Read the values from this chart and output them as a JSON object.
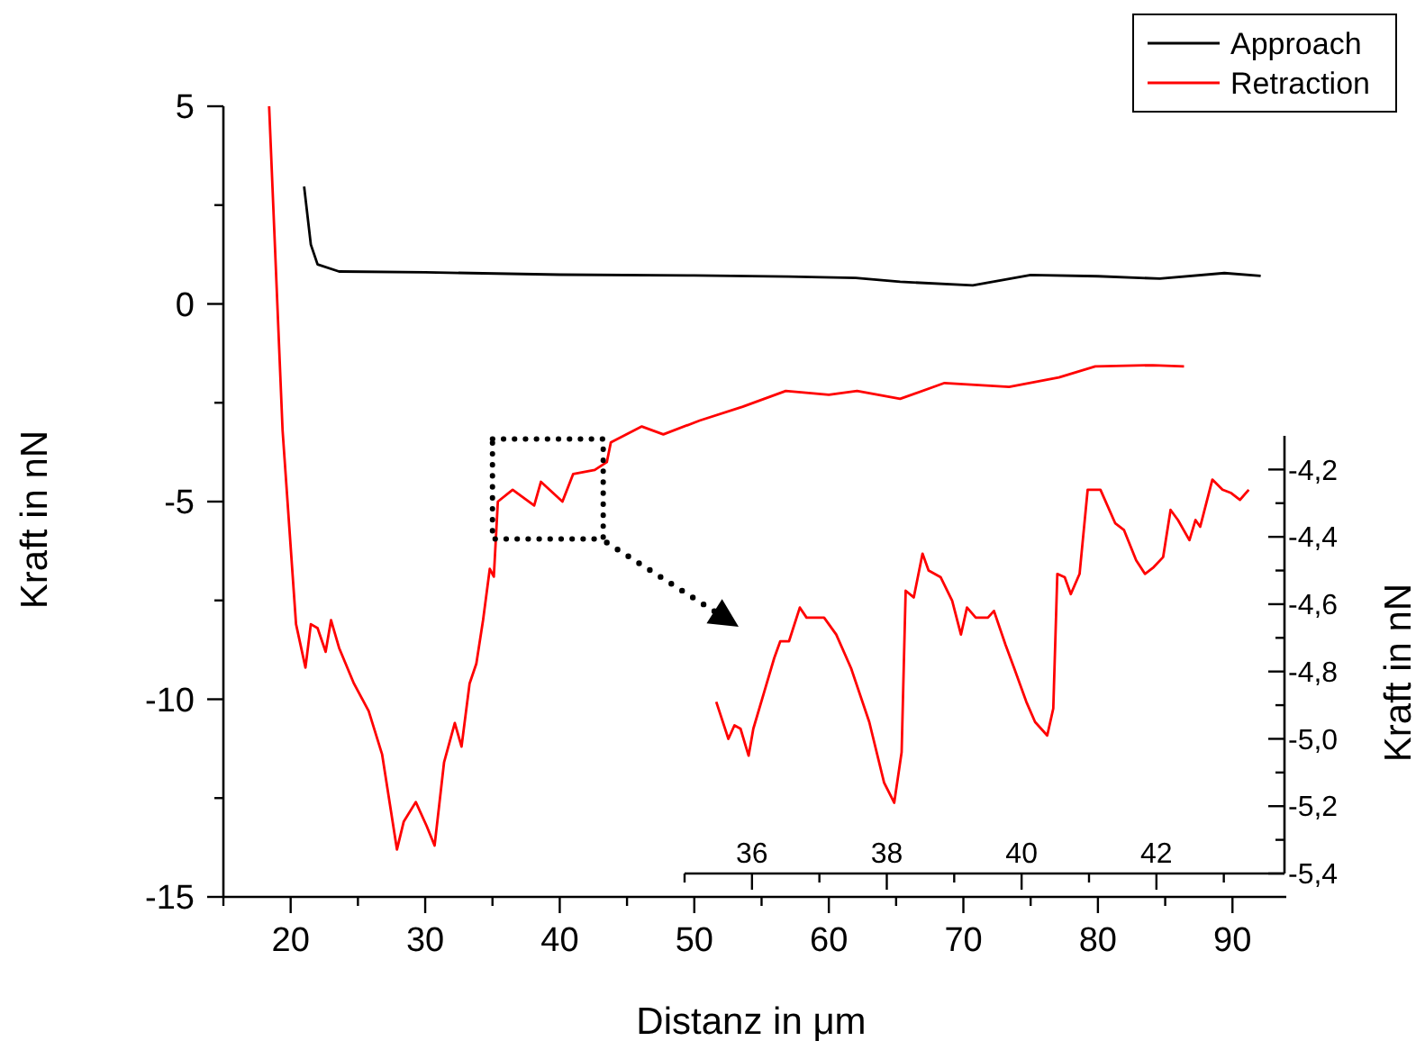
{
  "chart_data": [
    {
      "type": "line",
      "xlabel": "Distanz in μm",
      "ylabel": "Kraft in nN",
      "xlim": [
        15,
        94
      ],
      "ylim": [
        -15,
        5
      ],
      "xticks": [
        {
          "value": 15,
          "label": null
        },
        20,
        {
          "value": 25,
          "label": null
        },
        30,
        {
          "value": 35,
          "label": null
        },
        40,
        {
          "value": 45,
          "label": null
        },
        50,
        {
          "value": 55,
          "label": null
        },
        60,
        {
          "value": 65,
          "label": null
        },
        70,
        {
          "value": 75,
          "label": null
        },
        80,
        {
          "value": 85,
          "label": null
        },
        90
      ],
      "yticks": [
        -15,
        {
          "value": -12.5,
          "label": null
        },
        -10,
        {
          "value": -7.5,
          "label": null
        },
        -5,
        {
          "value": -2.5,
          "label": null
        },
        0,
        {
          "value": 2.5,
          "label": null
        },
        5
      ],
      "legend": "top right",
      "grid": false,
      "series": [
        {
          "name": "Approach",
          "color": "#000000",
          "x": [
            21,
            21.5,
            22,
            23.6,
            30,
            40,
            50,
            57,
            62,
            65.3,
            70.7,
            75,
            80,
            84.6,
            89.4,
            92.1
          ],
          "values": [
            2.97,
            1.5,
            1.0,
            0.82,
            0.8,
            0.74,
            0.72,
            0.69,
            0.66,
            0.56,
            0.47,
            0.73,
            0.7,
            0.64,
            0.78,
            0.71
          ]
        },
        {
          "name": "Retraction",
          "color": "#ff0000",
          "x": [
            18.4,
            19.4,
            20.4,
            21.1,
            21.5,
            22,
            22.6,
            23,
            23.6,
            24.7,
            25.8,
            26.8,
            27.9,
            28.4,
            29.3,
            30.1,
            30.7,
            31.4,
            32.2,
            32.7,
            33.3,
            33.8,
            34.3,
            34.8,
            35.1,
            35.4,
            36.5,
            38.1,
            38.6,
            40.2,
            41,
            42.6,
            43.5,
            43.8,
            46.1,
            47.7,
            50.4,
            53.6,
            56.8,
            60,
            62.1,
            65.3,
            68.6,
            73.4,
            77.1,
            79.8,
            84.1,
            86.4
          ],
          "values": [
            5.0,
            -3.2,
            -8.1,
            -9.2,
            -8.1,
            -8.2,
            -8.8,
            -8.0,
            -8.7,
            -9.6,
            -10.3,
            -11.4,
            -13.8,
            -13.1,
            -12.6,
            -13.2,
            -13.7,
            -11.6,
            -10.6,
            -11.2,
            -9.6,
            -9.1,
            -8.0,
            -6.7,
            -6.9,
            -5.0,
            -4.7,
            -5.1,
            -4.5,
            -5.0,
            -4.3,
            -4.2,
            -4.0,
            -3.5,
            -3.1,
            -3.3,
            -2.95,
            -2.6,
            -2.2,
            -2.3,
            -2.2,
            -2.4,
            -2.0,
            -2.1,
            -1.86,
            -1.58,
            -1.55,
            -1.58
          ]
        }
      ]
    },
    {
      "type": "line",
      "ylabel": "Kraft in nN",
      "xlim": [
        35,
        43.9
      ],
      "ylim": [
        -5.4,
        -4.1
      ],
      "xticks": [
        {
          "value": 35,
          "label": null
        },
        36,
        {
          "value": 37,
          "label": null
        },
        38,
        {
          "value": 39,
          "label": null
        },
        40,
        {
          "value": 41,
          "label": null
        },
        42,
        {
          "value": 43,
          "label": null
        }
      ],
      "yticks": [
        {
          "value": -5.4,
          "label": "-5,4"
        },
        {
          "value": -5.3,
          "label": null
        },
        {
          "value": -5.2,
          "label": "-5,2"
        },
        {
          "value": -5.1,
          "label": null
        },
        {
          "value": -5.0,
          "label": "-5,0"
        },
        {
          "value": -4.9,
          "label": null
        },
        {
          "value": -4.8,
          "label": "-4,8"
        },
        {
          "value": -4.7,
          "label": null
        },
        {
          "value": -4.6,
          "label": "-4,6"
        },
        {
          "value": -4.5,
          "label": null
        },
        {
          "value": -4.4,
          "label": "-4,4"
        },
        {
          "value": -4.3,
          "label": null
        },
        {
          "value": -4.2,
          "label": "-4,2"
        }
      ],
      "series": [
        {
          "color": "#ff0000",
          "x": [
            35.47,
            35.65,
            35.74,
            35.83,
            35.95,
            36.02,
            36.33,
            36.42,
            36.55,
            36.71,
            36.81,
            37.07,
            37.25,
            37.47,
            37.74,
            37.96,
            38.11,
            38.22,
            38.28,
            38.4,
            38.53,
            38.62,
            38.8,
            38.97,
            39.1,
            39.19,
            39.32,
            39.5,
            39.59,
            39.76,
            39.89,
            40.07,
            40.2,
            40.38,
            40.47,
            40.53,
            40.64,
            40.73,
            40.86,
            40.98,
            41.17,
            41.39,
            41.52,
            41.7,
            41.83,
            41.96,
            42.1,
            42.21,
            42.32,
            42.49,
            42.58,
            42.65,
            42.83,
            42.98,
            43.11,
            43.24,
            43.37
          ],
          "values": [
            -4.89,
            -5.0,
            -4.96,
            -4.97,
            -5.05,
            -4.97,
            -4.76,
            -4.71,
            -4.71,
            -4.61,
            -4.64,
            -4.64,
            -4.69,
            -4.79,
            -4.95,
            -5.13,
            -5.19,
            -5.04,
            -4.56,
            -4.58,
            -4.45,
            -4.5,
            -4.52,
            -4.59,
            -4.69,
            -4.61,
            -4.64,
            -4.64,
            -4.62,
            -4.72,
            -4.79,
            -4.89,
            -4.95,
            -4.99,
            -4.91,
            -4.51,
            -4.52,
            -4.57,
            -4.51,
            -4.26,
            -4.26,
            -4.36,
            -4.38,
            -4.47,
            -4.51,
            -4.49,
            -4.46,
            -4.32,
            -4.35,
            -4.41,
            -4.35,
            -4.37,
            -4.23,
            -4.26,
            -4.27,
            -4.29,
            -4.26
          ]
        }
      ]
    }
  ]
}
